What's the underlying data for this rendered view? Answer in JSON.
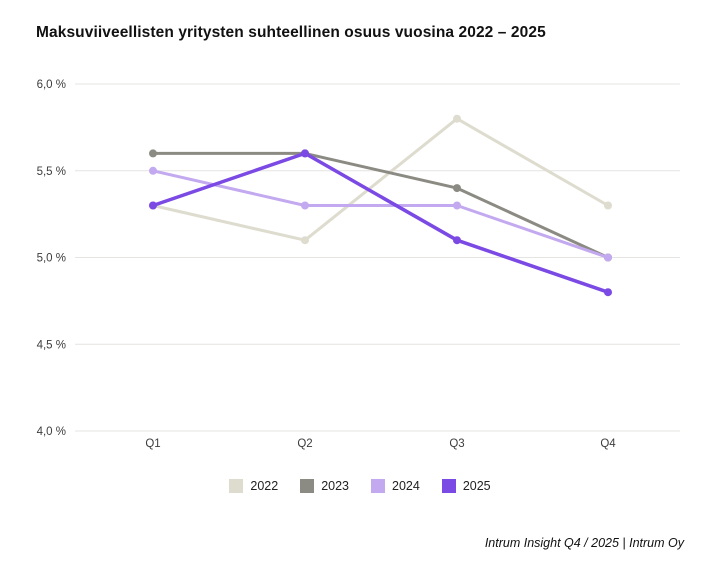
{
  "page": {
    "title": "Maksuviiveellisten yritysten suhteellinen osuus vuosina 2022 – 2025",
    "footer": "Intrum Insight Q4 / 2025 | Intrum Oy"
  },
  "chart_data": {
    "type": "line",
    "title": "Maksuviiveellisten yritysten suhteellinen osuus vuosina 2022 – 2025",
    "categories": [
      "Q1",
      "Q2",
      "Q3",
      "Q4"
    ],
    "series": [
      {
        "name": "2022",
        "color": "#dedcce",
        "values": [
          5.3,
          5.1,
          5.8,
          5.3
        ]
      },
      {
        "name": "2023",
        "color": "#8c8b83",
        "values": [
          5.6,
          5.6,
          5.4,
          5.0
        ]
      },
      {
        "name": "2024",
        "color": "#c3a9ef",
        "values": [
          5.5,
          5.3,
          5.3,
          5.0
        ]
      },
      {
        "name": "2025",
        "color": "#7b49e3",
        "values": [
          5.3,
          5.6,
          5.1,
          4.8
        ]
      }
    ],
    "ylim": [
      4.0,
      6.0
    ],
    "yticks": [
      4.0,
      4.5,
      5.0,
      5.5,
      6.0
    ],
    "ytick_labels": [
      "4,0 %",
      "4,5 %",
      "5,0 %",
      "5,5 %",
      "6,0 %"
    ],
    "xlabel": "",
    "ylabel": "",
    "grid": true,
    "legend_position": "bottom",
    "footnote": "Intrum Insight Q4 / 2025 | Intrum Oy"
  }
}
